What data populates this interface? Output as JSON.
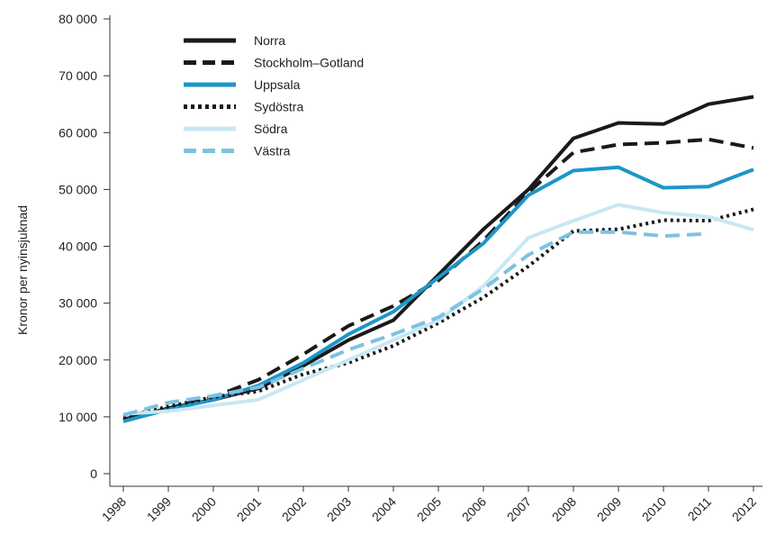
{
  "chart_data": {
    "type": "line",
    "ylabel": "Kronor per nyinsjuknad",
    "ylim": [
      0,
      80000
    ],
    "y_ticks": [
      {
        "value": 0,
        "label": "0"
      },
      {
        "value": 10000,
        "label": "10 000"
      },
      {
        "value": 20000,
        "label": "20 000"
      },
      {
        "value": 30000,
        "label": "30 000"
      },
      {
        "value": 40000,
        "label": "40 000"
      },
      {
        "value": 50000,
        "label": "50 000"
      },
      {
        "value": 60000,
        "label": "60 000"
      },
      {
        "value": 70000,
        "label": "70 000"
      },
      {
        "value": 80000,
        "label": "80 000"
      }
    ],
    "x": [
      "1998",
      "1999",
      "2000",
      "2001",
      "2002",
      "2003",
      "2004",
      "2005",
      "2006",
      "2007",
      "2008",
      "2009",
      "2010",
      "2011",
      "2012"
    ],
    "grid": false,
    "legend_position": "top-left",
    "series": [
      {
        "name": "Norra",
        "color": "#1a1a1a",
        "style": "solid",
        "values": [
          9500,
          11500,
          13000,
          15000,
          19000,
          23500,
          27000,
          35000,
          43000,
          50000,
          59000,
          61700,
          61500,
          65000,
          66300
        ]
      },
      {
        "name": "Stockholm–Gotland",
        "color": "#1a1a1a",
        "style": "dashed",
        "values": [
          9500,
          11500,
          13500,
          16500,
          21000,
          26000,
          29500,
          34000,
          41000,
          49500,
          56500,
          57900,
          58200,
          58800,
          57300
        ]
      },
      {
        "name": "Uppsala",
        "color": "#1d96c8",
        "style": "solid",
        "values": [
          9200,
          11300,
          13000,
          15500,
          19500,
          24500,
          28500,
          34500,
          40500,
          49000,
          53300,
          53900,
          50300,
          50500,
          53500
        ]
      },
      {
        "name": "Sydöstra",
        "color": "#1a1a1a",
        "style": "dotted",
        "values": [
          10000,
          11800,
          13500,
          14500,
          17500,
          19500,
          22500,
          26500,
          31000,
          36500,
          42700,
          43000,
          44600,
          44500,
          46500
        ]
      },
      {
        "name": "Södra",
        "color": "#c9e7f4",
        "style": "solid",
        "values": [
          10500,
          11000,
          12000,
          13000,
          16500,
          20000,
          23500,
          27000,
          33000,
          41500,
          44500,
          47300,
          45900,
          45200,
          42900
        ]
      },
      {
        "name": "Västra",
        "color": "#7cc3e1",
        "style": "dashed",
        "values": [
          10300,
          12500,
          13700,
          15200,
          18500,
          21800,
          24500,
          27500,
          32500,
          38500,
          42500,
          42500,
          41800,
          42200,
          null
        ]
      }
    ]
  }
}
